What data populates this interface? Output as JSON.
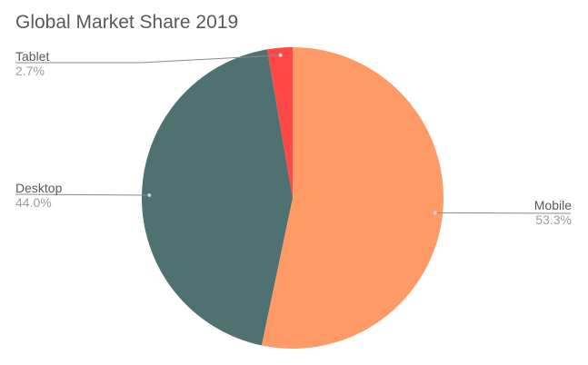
{
  "chart_data": {
    "type": "pie",
    "title": "Global Market Share 2019",
    "categories": [
      "Mobile",
      "Desktop",
      "Tablet"
    ],
    "values": [
      53.3,
      44.0,
      2.7
    ],
    "value_labels": [
      "53.3%",
      "44.0%",
      "2.7%"
    ],
    "colors": [
      "#FF9966",
      "#4F7170",
      "#FF4848"
    ],
    "legend": "none",
    "grid": false
  }
}
